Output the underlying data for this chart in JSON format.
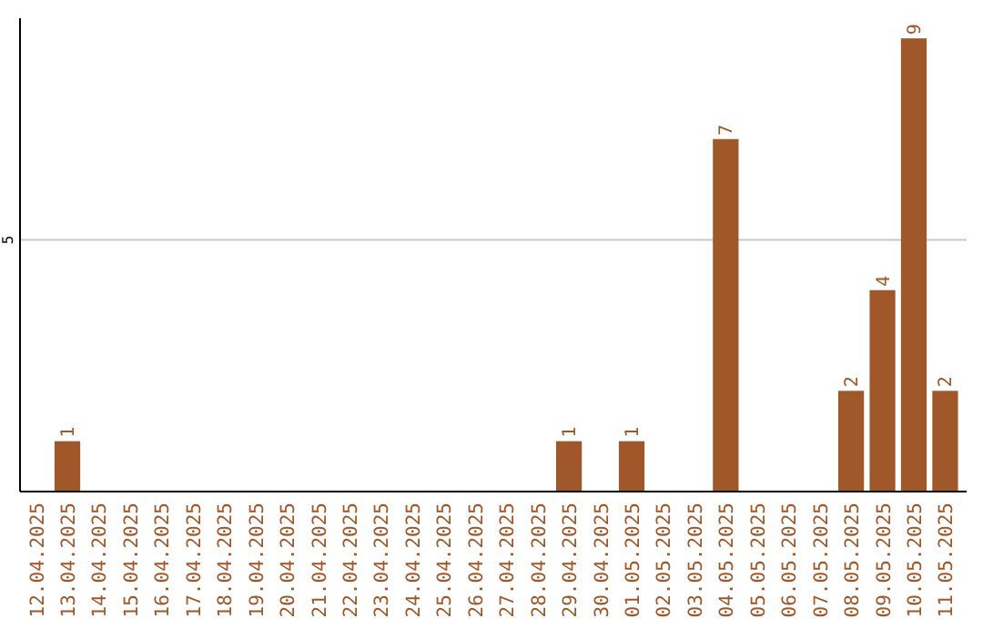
{
  "chart_data": {
    "type": "bar",
    "categories": [
      "12.04.2025",
      "13.04.2025",
      "14.04.2025",
      "15.04.2025",
      "16.04.2025",
      "17.04.2025",
      "18.04.2025",
      "19.04.2025",
      "20.04.2025",
      "21.04.2025",
      "22.04.2025",
      "23.04.2025",
      "24.04.2025",
      "25.04.2025",
      "26.04.2025",
      "27.04.2025",
      "28.04.2025",
      "29.04.2025",
      "30.04.2025",
      "01.05.2025",
      "02.05.2025",
      "03.05.2025",
      "04.05.2025",
      "05.05.2025",
      "06.05.2025",
      "07.05.2025",
      "08.05.2025",
      "09.05.2025",
      "10.05.2025",
      "11.05.2025"
    ],
    "values": [
      0,
      1,
      0,
      0,
      0,
      0,
      0,
      0,
      0,
      0,
      0,
      0,
      0,
      0,
      0,
      0,
      0,
      1,
      0,
      1,
      0,
      0,
      7,
      0,
      0,
      0,
      2,
      4,
      9,
      2
    ],
    "value_labels": [
      null,
      "1",
      null,
      null,
      null,
      null,
      null,
      null,
      null,
      null,
      null,
      null,
      null,
      null,
      null,
      null,
      null,
      "1",
      null,
      "1",
      null,
      null,
      "7",
      null,
      null,
      null,
      "2",
      "4",
      "9",
      "2"
    ],
    "color": "#a0572a",
    "ylim": [
      0,
      9.4
    ],
    "yticks": [
      5
    ],
    "grid": "y"
  }
}
